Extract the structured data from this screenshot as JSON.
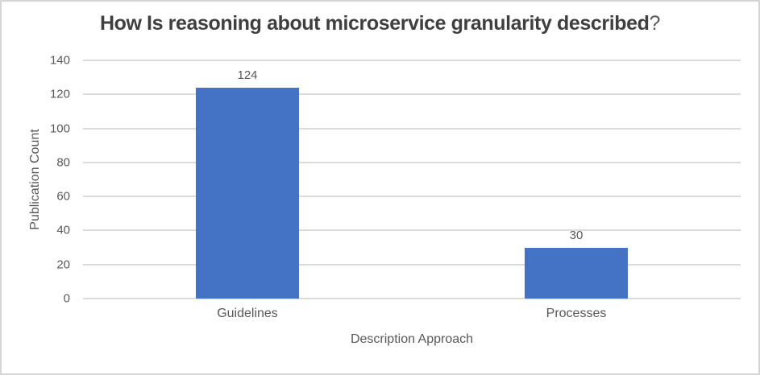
{
  "frame": {
    "border_color": "#d6d6d6",
    "background_color": "#ffffff"
  },
  "chart_data": {
    "type": "bar",
    "title": "How Is reasoning about microservice granularity described?",
    "title_main": "How Is reasoning about microservice granularity described",
    "title_suffix": "?",
    "categories": [
      "Guidelines",
      "Processes"
    ],
    "values": [
      124,
      30
    ],
    "data_labels": [
      "124",
      "30"
    ],
    "xlabel": "Description Approach",
    "ylabel": "Publication Count",
    "ylim": [
      0,
      140
    ],
    "ytick_step": 20,
    "ytick_labels": [
      "0",
      "20",
      "40",
      "60",
      "80",
      "100",
      "120",
      "140"
    ],
    "grid": true,
    "legend": false,
    "bar_color": "#4472c4",
    "gridline_color": "#dbdbdb",
    "title_color": "#3f3f3f",
    "axis_text_color": "#595959"
  }
}
